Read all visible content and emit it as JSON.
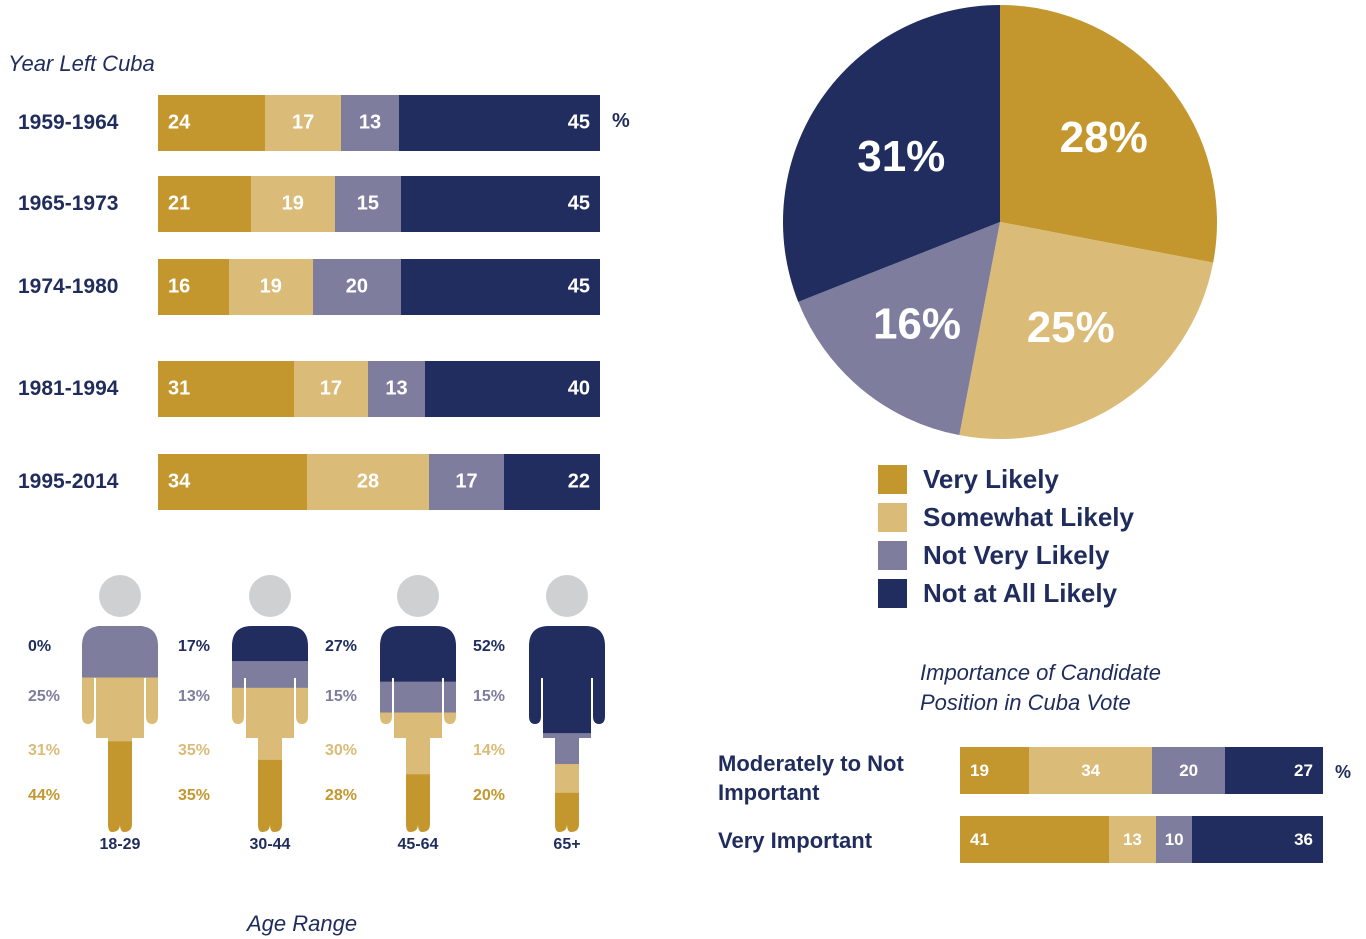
{
  "colors": {
    "very_likely": "#c3972e",
    "somewhat_likely": "#dabb77",
    "not_very_likely": "#7f7d9e",
    "not_at_all_likely": "#202d5e",
    "head": "#cfd0d2"
  },
  "chart_data": [
    {
      "type": "bar",
      "orientation": "horizontal-stacked",
      "title": "Year Left Cuba",
      "unit": "%",
      "categories": [
        "1959-1964",
        "1965-1973",
        "1974-1980",
        "1981-1994",
        "1995-2014"
      ],
      "series": [
        {
          "name": "Very Likely",
          "values": [
            24,
            21,
            16,
            31,
            34
          ]
        },
        {
          "name": "Somewhat Likely",
          "values": [
            17,
            19,
            19,
            17,
            28
          ]
        },
        {
          "name": "Not Very Likely",
          "values": [
            13,
            15,
            20,
            13,
            17
          ]
        },
        {
          "name": "Not at All Likely",
          "values": [
            45,
            45,
            45,
            40,
            22
          ]
        }
      ]
    },
    {
      "type": "pie",
      "slices": [
        {
          "name": "Very Likely",
          "value": 28,
          "label": "28%"
        },
        {
          "name": "Somewhat Likely",
          "value": 25,
          "label": "25%"
        },
        {
          "name": "Not Very Likely",
          "value": 16,
          "label": "16%"
        },
        {
          "name": "Not at All Likely",
          "value": 31,
          "label": "31%"
        }
      ],
      "legend": [
        "Very Likely",
        "Somewhat Likely",
        "Not Very Likely",
        "Not at All Likely"
      ],
      "legend_placement": "bottom"
    },
    {
      "type": "bar",
      "orientation": "horizontal-stacked",
      "title_lines": [
        "Importance of Candidate",
        "Position in Cuba Vote"
      ],
      "unit": "%",
      "categories": [
        [
          "Moderately to Not",
          "Important"
        ],
        [
          "Very Important"
        ]
      ],
      "series": [
        {
          "name": "Very Likely",
          "values": [
            19,
            41
          ]
        },
        {
          "name": "Somewhat Likely",
          "values": [
            34,
            13
          ]
        },
        {
          "name": "Not Very Likely",
          "values": [
            20,
            10
          ]
        },
        {
          "name": "Not at All Likely",
          "values": [
            27,
            36
          ]
        }
      ]
    },
    {
      "type": "stacked-pictogram",
      "xlabel": "Age Range",
      "categories": [
        "18-29",
        "30-44",
        "45-64",
        "65+"
      ],
      "series": [
        {
          "name": "Not at All Likely",
          "values": [
            0,
            17,
            27,
            52
          ],
          "labels": [
            "0%",
            "17%",
            "27%",
            "52%"
          ]
        },
        {
          "name": "Not Very Likely",
          "values": [
            25,
            13,
            15,
            15
          ],
          "labels": [
            "25%",
            "13%",
            "15%",
            "15%"
          ]
        },
        {
          "name": "Somewhat Likely",
          "values": [
            31,
            35,
            30,
            14
          ],
          "labels": [
            "31%",
            "35%",
            "30%",
            "14%"
          ]
        },
        {
          "name": "Very Likely",
          "values": [
            44,
            35,
            28,
            20
          ],
          "labels": [
            "44%",
            "35%",
            "28%",
            "20%"
          ]
        }
      ]
    }
  ]
}
